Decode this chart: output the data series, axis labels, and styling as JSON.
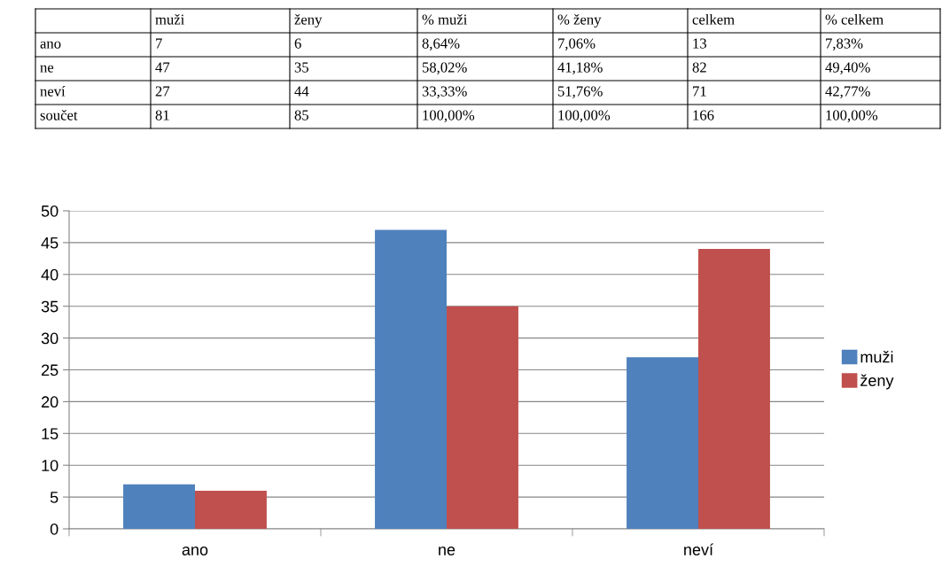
{
  "chart_data": [
    {
      "type": "other",
      "categories": [
        null,
        "muži",
        "ženy",
        "% muži",
        "% ženy",
        "celkem",
        "% celkem"
      ],
      "y_categories": [
        "ano",
        "ne",
        "neví",
        "součet"
      ],
      "cell_labels": [
        [
          "7",
          "6",
          "8,64%",
          "7,06%",
          "13",
          "7,83%"
        ],
        [
          "47",
          "35",
          "58,02%",
          "41,18%",
          "82",
          "49,40%"
        ],
        [
          "27",
          "44",
          "33,33%",
          "51,76%",
          "71",
          "42,77%"
        ],
        [
          "81",
          "85",
          "100,00%",
          "100,00%",
          "166",
          "100,00%"
        ]
      ]
    },
    {
      "type": "bar",
      "categories": [
        "ano",
        "ne",
        "neví"
      ],
      "series": [
        {
          "name": "muži",
          "color": "#4f81bd",
          "values": [
            7,
            47,
            27
          ]
        },
        {
          "name": "ženy",
          "color": "#c0504d",
          "values": [
            6,
            35,
            44
          ]
        }
      ],
      "ylim": [
        0,
        50
      ],
      "yticks": [
        0,
        5,
        10,
        15,
        20,
        25,
        30,
        35,
        40,
        45,
        50
      ],
      "grid": "y",
      "legend": "right"
    }
  ]
}
